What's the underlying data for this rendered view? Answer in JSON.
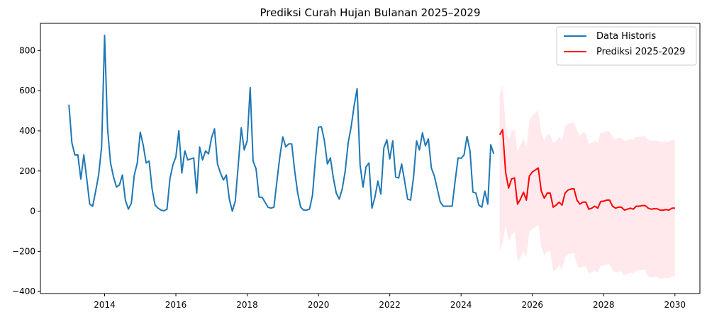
{
  "chart_data": {
    "type": "line",
    "title": "Prediksi Curah Hujan Bulanan 2025–2029",
    "xlabel": "",
    "ylabel": "",
    "xlim": [
      2012.2,
      2030.7
    ],
    "ylim": [
      -410,
      935
    ],
    "x_ticks": [
      2014,
      2016,
      2018,
      2020,
      2022,
      2024,
      2026,
      2028,
      2030
    ],
    "x_tick_labels": [
      "2014",
      "2016",
      "2018",
      "2020",
      "2022",
      "2024",
      "2026",
      "2028",
      "2030"
    ],
    "y_ticks": [
      -400,
      -200,
      0,
      200,
      400,
      600,
      800
    ],
    "y_tick_labels": [
      "−400",
      "−200",
      "0",
      "200",
      "400",
      "600",
      "800"
    ],
    "grid": false,
    "legend_position": "top-right",
    "series": [
      {
        "name": "Data Historis",
        "color": "#1f77b4",
        "x_start": 2013.0,
        "x_step_months": 1,
        "values": [
          530,
          340,
          280,
          280,
          160,
          280,
          160,
          35,
          25,
          100,
          180,
          320,
          875,
          410,
          240,
          170,
          120,
          130,
          180,
          55,
          10,
          40,
          180,
          240,
          393,
          330,
          240,
          250,
          110,
          30,
          15,
          5,
          2,
          10,
          160,
          230,
          270,
          400,
          190,
          300,
          255,
          260,
          265,
          90,
          320,
          255,
          300,
          285,
          365,
          410,
          235,
          190,
          155,
          180,
          60,
          0,
          50,
          230,
          415,
          305,
          350,
          615,
          250,
          210,
          70,
          70,
          45,
          20,
          15,
          20,
          150,
          270,
          370,
          320,
          335,
          335,
          200,
          90,
          20,
          5,
          5,
          10,
          80,
          260,
          418,
          420,
          350,
          235,
          265,
          165,
          90,
          60,
          110,
          200,
          340,
          420,
          525,
          610,
          230,
          120,
          220,
          240,
          15,
          70,
          150,
          85,
          315,
          355,
          260,
          350,
          170,
          165,
          235,
          150,
          60,
          55,
          170,
          350,
          305,
          390,
          325,
          360,
          215,
          175,
          110,
          45,
          25,
          25,
          25,
          25,
          150,
          265,
          263,
          280,
          372,
          300,
          95,
          90,
          30,
          20,
          100,
          35,
          330,
          285
        ]
      },
      {
        "name": "Prediksi 2025-2029",
        "color": "#ff0000",
        "band_color": "#ffc0cb",
        "x_start": 2025.0833,
        "x_step_months": 1,
        "values": [
          380,
          405,
          195,
          115,
          160,
          165,
          35,
          60,
          95,
          55,
          175,
          195,
          205,
          215,
          100,
          65,
          90,
          90,
          20,
          30,
          45,
          30,
          90,
          105,
          110,
          112,
          55,
          35,
          45,
          45,
          10,
          15,
          25,
          15,
          48,
          50,
          55,
          55,
          25,
          15,
          20,
          20,
          5,
          10,
          15,
          10,
          25,
          25,
          28,
          28,
          15,
          10,
          12,
          12,
          5,
          5,
          8,
          5,
          15,
          15
        ],
        "lower": [
          -200,
          -160,
          -70,
          -150,
          -120,
          -100,
          -250,
          -230,
          -200,
          -230,
          -100,
          -90,
          -80,
          -70,
          -180,
          -220,
          -200,
          -200,
          -300,
          -290,
          -270,
          -290,
          -230,
          -215,
          -210,
          -210,
          -265,
          -285,
          -275,
          -275,
          -310,
          -305,
          -295,
          -305,
          -272,
          -270,
          -265,
          -265,
          -295,
          -305,
          -300,
          -300,
          -320,
          -310,
          -305,
          -310,
          -295,
          -295,
          -292,
          -292,
          -325,
          -330,
          -328,
          -328,
          -335,
          -335,
          -332,
          -335,
          -325,
          -325
        ],
        "upper": [
          580,
          625,
          430,
          350,
          400,
          405,
          300,
          330,
          365,
          320,
          450,
          475,
          490,
          500,
          390,
          350,
          380,
          380,
          340,
          350,
          370,
          355,
          420,
          435,
          440,
          442,
          400,
          375,
          390,
          390,
          335,
          340,
          350,
          340,
          390,
          392,
          398,
          398,
          370,
          360,
          365,
          365,
          350,
          355,
          360,
          355,
          370,
          370,
          372,
          372,
          355,
          350,
          352,
          352,
          345,
          345,
          348,
          345,
          355,
          355
        ]
      }
    ]
  }
}
